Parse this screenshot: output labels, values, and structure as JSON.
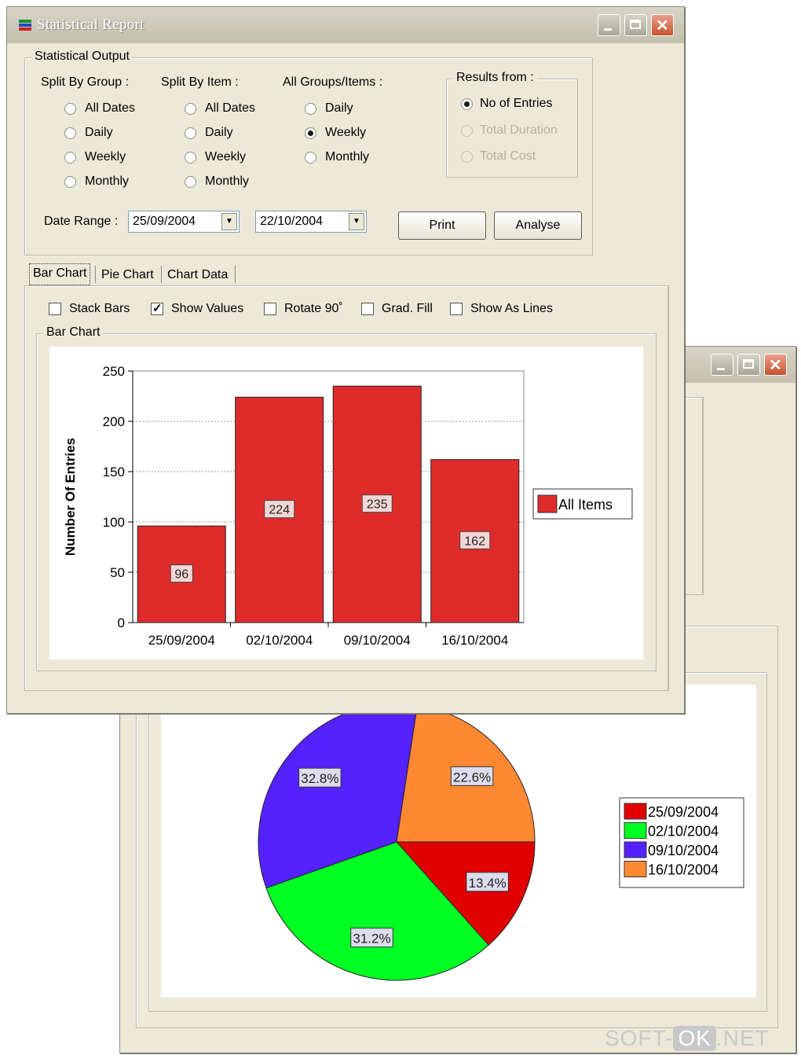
{
  "main_window": {
    "title": "Statistical Report",
    "statistical_output": {
      "legend": "Statistical Output",
      "split_by_group": {
        "label": "Split By Group :",
        "options": [
          "All Dates",
          "Daily",
          "Weekly",
          "Monthly"
        ]
      },
      "split_by_item": {
        "label": "Split By Item :",
        "options": [
          "All Dates",
          "Daily",
          "Weekly",
          "Monthly"
        ]
      },
      "all_groups": {
        "label": "All Groups/Items :",
        "options": [
          "Daily",
          "Weekly",
          "Monthly"
        ],
        "selected": "Weekly"
      },
      "results_from": {
        "legend": "Results from :",
        "options": [
          "No of Entries",
          "Total Duration",
          "Total Cost"
        ],
        "selected": "No of Entries"
      },
      "date_range": {
        "label": "Date Range :",
        "from": "25/09/2004",
        "to": "22/10/2004"
      },
      "print_label": "Print",
      "analyse_label": "Analyse"
    },
    "tabs": [
      "Bar Chart",
      "Pie Chart",
      "Chart Data"
    ],
    "active_tab": "Bar Chart",
    "options": [
      {
        "label": "Stack Bars",
        "checked": false
      },
      {
        "label": "Show Values",
        "checked": true
      },
      {
        "label": "Rotate 90˚",
        "checked": false
      },
      {
        "label": "Grad. Fill",
        "checked": false
      },
      {
        "label": "Show As Lines",
        "checked": false
      }
    ],
    "chart_group_label": "Bar Chart"
  },
  "chart_data": [
    {
      "type": "bar",
      "categories": [
        "25/09/2004",
        "02/10/2004",
        "09/10/2004",
        "16/10/2004"
      ],
      "series": [
        {
          "name": "All Items",
          "values": [
            96,
            224,
            235,
            162
          ],
          "color": "#e02b2b"
        }
      ],
      "ylabel": "Number Of Entries",
      "ylim": [
        0,
        250
      ],
      "yticks": [
        0,
        50,
        100,
        150,
        200,
        250
      ],
      "show_values": true,
      "grid": true,
      "legend_position": "right"
    },
    {
      "type": "pie",
      "labels": [
        "25/09/2004",
        "02/10/2004",
        "09/10/2004",
        "16/10/2004"
      ],
      "values": [
        13.4,
        31.2,
        32.8,
        22.6
      ],
      "value_labels": [
        "13.4%",
        "31.2%",
        "32.8%",
        "22.6%"
      ],
      "colors": [
        "#e00000",
        "#00ff22",
        "#5522ff",
        "#ff8833"
      ],
      "legend_position": "right"
    }
  ],
  "watermark": {
    "left": "SOFT-",
    "mid": "OK",
    "right": ".NET"
  }
}
